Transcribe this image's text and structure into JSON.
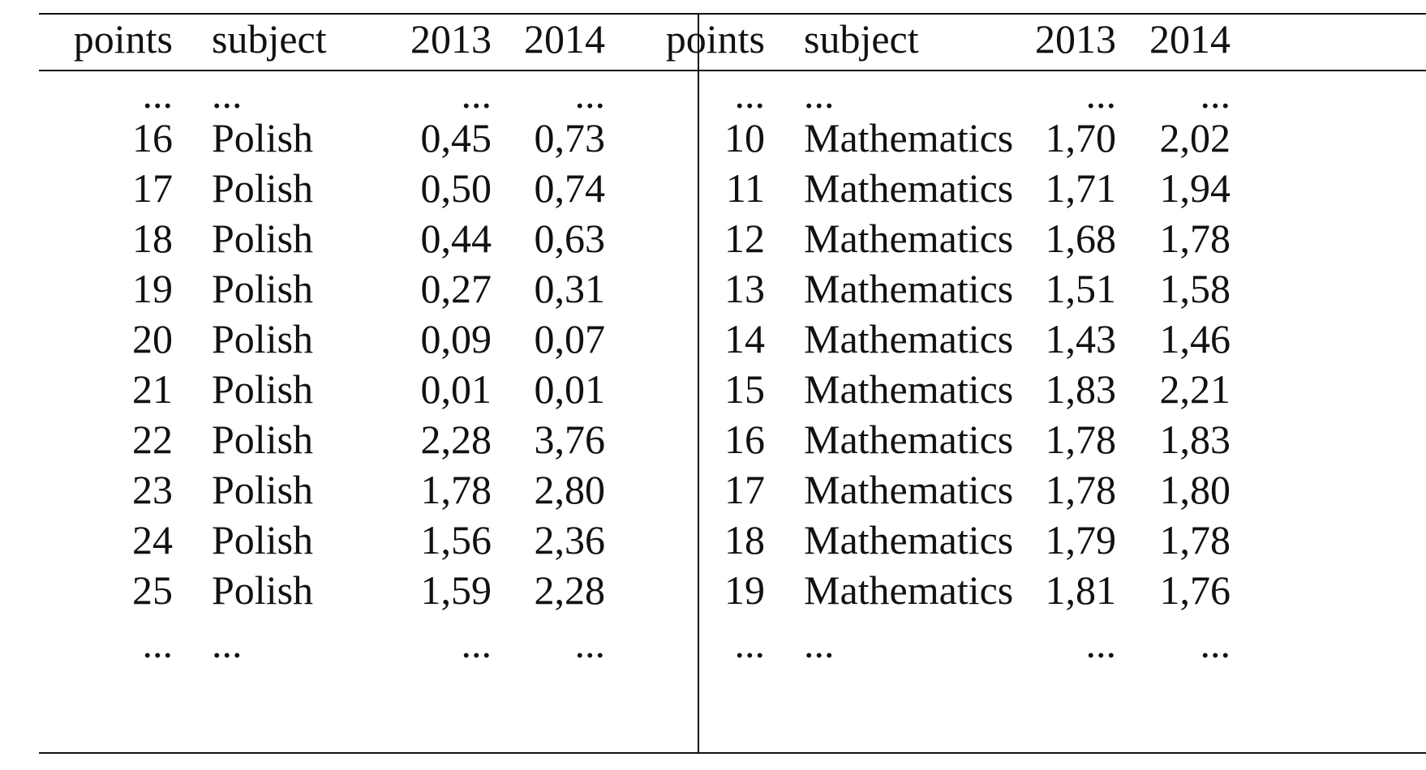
{
  "left_table": {
    "headers": [
      "points",
      "subject",
      "2013",
      "2014"
    ],
    "rows": [
      [
        "...",
        "...",
        "...",
        "..."
      ],
      [
        "16",
        "Polish",
        "0,45",
        "0,73"
      ],
      [
        "17",
        "Polish",
        "0,50",
        "0,74"
      ],
      [
        "18",
        "Polish",
        "0,44",
        "0,63"
      ],
      [
        "19",
        "Polish",
        "0,27",
        "0,31"
      ],
      [
        "20",
        "Polish",
        "0,09",
        "0,07"
      ],
      [
        "21",
        "Polish",
        "0,01",
        "0,01"
      ],
      [
        "22",
        "Polish",
        "2,28",
        "3,76"
      ],
      [
        "23",
        "Polish",
        "1,78",
        "2,80"
      ],
      [
        "24",
        "Polish",
        "1,56",
        "2,36"
      ],
      [
        "25",
        "Polish",
        "1,59",
        "2,28"
      ],
      [
        "...",
        "...",
        "...",
        "..."
      ]
    ]
  },
  "right_table": {
    "headers": [
      "points",
      "subject",
      "2013",
      "2014"
    ],
    "rows": [
      [
        "...",
        "...",
        "...",
        "..."
      ],
      [
        "10",
        "Mathematics",
        "1,70",
        "2,02"
      ],
      [
        "11",
        "Mathematics",
        "1,71",
        "1,94"
      ],
      [
        "12",
        "Mathematics",
        "1,68",
        "1,78"
      ],
      [
        "13",
        "Mathematics",
        "1,51",
        "1,58"
      ],
      [
        "14",
        "Mathematics",
        "1,43",
        "1,46"
      ],
      [
        "15",
        "Mathematics",
        "1,83",
        "2,21"
      ],
      [
        "16",
        "Mathematics",
        "1,78",
        "1,83"
      ],
      [
        "17",
        "Mathematics",
        "1,78",
        "1,80"
      ],
      [
        "18",
        "Mathematics",
        "1,79",
        "1,78"
      ],
      [
        "19",
        "Mathematics",
        "1,81",
        "1,76"
      ],
      [
        "...",
        "...",
        "...",
        "..."
      ]
    ]
  }
}
